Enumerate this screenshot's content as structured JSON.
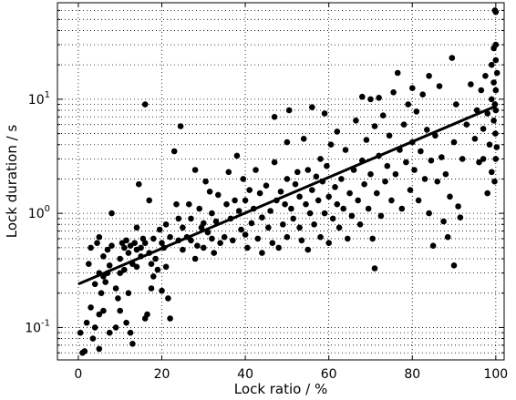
{
  "chart_data": {
    "type": "scatter",
    "xlabel": "Lock ratio / %",
    "ylabel": "Lock duration / s",
    "xlim": [
      -5,
      102
    ],
    "ylim": [
      0.052,
      70
    ],
    "yscale": "log",
    "grid": true,
    "x_ticks": [
      0,
      20,
      40,
      60,
      80,
      100
    ],
    "x_tick_labels": [
      "0",
      "20",
      "40",
      "60",
      "80",
      "100"
    ],
    "y_ticks": [
      0.1,
      1,
      10
    ],
    "y_tick_labels": [
      {
        "base": "10",
        "exp": "-1"
      },
      {
        "base": "10",
        "exp": "0"
      },
      {
        "base": "10",
        "exp": "1"
      }
    ],
    "colors": {
      "points": "#000000",
      "fit_line": "#000000",
      "grid": "#000000"
    },
    "fit_line": {
      "x": [
        0,
        100
      ],
      "y": [
        0.24,
        8.7
      ]
    },
    "series": [
      {
        "values": [
          [
            0.5,
            0.09
          ],
          [
            1,
            0.06
          ],
          [
            1.5,
            0.062
          ],
          [
            2,
            0.11
          ],
          [
            2.5,
            0.36
          ],
          [
            3,
            0.5
          ],
          [
            3,
            0.15
          ],
          [
            3.5,
            0.08
          ],
          [
            4,
            0.1
          ],
          [
            4,
            0.24
          ],
          [
            4.5,
            0.55
          ],
          [
            5,
            0.3
          ],
          [
            5,
            0.62
          ],
          [
            5,
            0.13
          ],
          [
            5,
            0.065
          ],
          [
            5.5,
            0.2
          ],
          [
            6,
            0.14
          ],
          [
            6,
            0.28
          ],
          [
            6,
            0.42
          ],
          [
            6.5,
            0.25
          ],
          [
            7,
            0.48
          ],
          [
            7,
            0.3
          ],
          [
            7.5,
            0.35
          ],
          [
            7.5,
            0.09
          ],
          [
            8,
            1.0
          ],
          [
            8,
            0.52
          ],
          [
            9,
            0.22
          ],
          [
            9,
            0.1
          ],
          [
            9.5,
            0.18
          ],
          [
            10,
            0.4
          ],
          [
            10,
            0.3
          ],
          [
            10,
            0.14
          ],
          [
            10.5,
            0.55
          ],
          [
            11,
            0.5
          ],
          [
            11,
            0.32
          ],
          [
            11.5,
            0.11
          ],
          [
            11.5,
            0.58
          ],
          [
            12,
            0.45
          ],
          [
            12,
            0.2
          ],
          [
            12.5,
            0.09
          ],
          [
            12.5,
            0.52
          ],
          [
            13,
            0.36
          ],
          [
            13,
            0.072
          ],
          [
            13.5,
            0.55
          ],
          [
            14,
            0.75
          ],
          [
            14,
            0.48
          ],
          [
            14,
            0.34
          ],
          [
            14.5,
            1.8
          ],
          [
            15,
            0.5
          ],
          [
            15,
            0.42
          ],
          [
            15.5,
            0.6
          ],
          [
            16,
            0.12
          ],
          [
            16,
            9.0
          ],
          [
            16,
            0.55
          ],
          [
            16.5,
            0.13
          ],
          [
            17,
            0.45
          ],
          [
            17,
            1.3
          ],
          [
            17.5,
            0.36
          ],
          [
            17.5,
            0.22
          ],
          [
            18,
            0.6
          ],
          [
            18,
            0.28
          ],
          [
            18.5,
            0.4
          ],
          [
            19,
            0.32
          ],
          [
            19.5,
            0.72
          ],
          [
            20,
            0.55
          ],
          [
            20,
            0.21
          ],
          [
            20.5,
            0.5
          ],
          [
            21,
            0.8
          ],
          [
            21,
            0.34
          ],
          [
            21.5,
            0.18
          ],
          [
            22,
            0.62
          ],
          [
            22,
            0.12
          ],
          [
            23,
            3.5
          ],
          [
            23.5,
            1.2
          ],
          [
            24,
            0.9
          ],
          [
            24,
            0.58
          ],
          [
            24.5,
            5.8
          ],
          [
            25,
            0.75
          ],
          [
            25,
            0.48
          ],
          [
            26,
            0.62
          ],
          [
            26.5,
            1.2
          ],
          [
            27,
            0.9
          ],
          [
            27,
            0.58
          ],
          [
            28,
            2.4
          ],
          [
            28,
            0.4
          ],
          [
            28.5,
            0.52
          ],
          [
            29,
            1.1
          ],
          [
            29.5,
            0.75
          ],
          [
            30,
            0.82
          ],
          [
            30,
            0.5
          ],
          [
            30.5,
            1.9
          ],
          [
            31,
            0.68
          ],
          [
            31.5,
            1.55
          ],
          [
            32,
            1.0
          ],
          [
            32,
            0.6
          ],
          [
            32.5,
            0.45
          ],
          [
            33,
            0.85
          ],
          [
            33.5,
            1.45
          ],
          [
            34,
            0.55
          ],
          [
            35,
            0.62
          ],
          [
            35.5,
            1.2
          ],
          [
            36,
            2.3
          ],
          [
            36.5,
            0.9
          ],
          [
            37,
            0.58
          ],
          [
            37.5,
            1.3
          ],
          [
            38,
            3.2
          ],
          [
            38.5,
            1.05
          ],
          [
            39,
            0.72
          ],
          [
            39.5,
            2.0
          ],
          [
            40,
            1.3
          ],
          [
            40,
            0.65
          ],
          [
            40.5,
            0.5
          ],
          [
            41,
            1.6
          ],
          [
            41.5,
            0.82
          ],
          [
            42,
            1.1
          ],
          [
            42.5,
            2.4
          ],
          [
            43,
            0.6
          ],
          [
            43.5,
            1.5
          ],
          [
            44,
            0.92
          ],
          [
            44,
            0.45
          ],
          [
            45,
            1.75
          ],
          [
            45.5,
            0.75
          ],
          [
            46,
            1.05
          ],
          [
            46.5,
            0.55
          ],
          [
            47,
            7.0
          ],
          [
            47,
            2.8
          ],
          [
            47.5,
            1.3
          ],
          [
            48,
            0.5
          ],
          [
            48.5,
            1.55
          ],
          [
            49,
            0.8
          ],
          [
            49.5,
            1.2
          ],
          [
            50,
            4.2
          ],
          [
            50,
            2.0
          ],
          [
            50,
            0.62
          ],
          [
            50.5,
            8.0
          ],
          [
            51,
            1.1
          ],
          [
            51.5,
            0.9
          ],
          [
            52,
            1.8
          ],
          [
            52.5,
            2.3
          ],
          [
            53,
            0.75
          ],
          [
            53,
            1.4
          ],
          [
            53.5,
            0.58
          ],
          [
            54,
            4.5
          ],
          [
            54.5,
            1.2
          ],
          [
            55,
            2.4
          ],
          [
            55,
            0.48
          ],
          [
            55.5,
            1.0
          ],
          [
            56,
            8.5
          ],
          [
            56,
            1.6
          ],
          [
            56.5,
            0.8
          ],
          [
            57,
            2.1
          ],
          [
            57.5,
            1.3
          ],
          [
            58,
            0.62
          ],
          [
            58,
            3.0
          ],
          [
            58.5,
            1.9
          ],
          [
            59,
            7.5
          ],
          [
            59,
            1.0
          ],
          [
            59.5,
            2.6
          ],
          [
            60,
            1.4
          ],
          [
            60,
            0.55
          ],
          [
            60.5,
            4.0
          ],
          [
            61,
            0.9
          ],
          [
            61.5,
            1.7
          ],
          [
            62,
            1.2
          ],
          [
            62,
            5.2
          ],
          [
            62.5,
            0.75
          ],
          [
            63,
            2.0
          ],
          [
            63.5,
            1.1
          ],
          [
            64,
            3.6
          ],
          [
            64.5,
            0.6
          ],
          [
            65,
            1.5
          ],
          [
            65.5,
            0.95
          ],
          [
            66,
            2.4
          ],
          [
            66.5,
            6.5
          ],
          [
            67,
            1.3
          ],
          [
            67.5,
            0.8
          ],
          [
            68,
            10.5
          ],
          [
            68,
            2.9
          ],
          [
            68.5,
            1.8
          ],
          [
            69,
            4.4
          ],
          [
            69.5,
            1.1
          ],
          [
            70,
            10.0
          ],
          [
            70,
            2.2
          ],
          [
            70.5,
            0.6
          ],
          [
            71,
            5.8
          ],
          [
            71,
            0.33
          ],
          [
            71.5,
            1.5
          ],
          [
            72,
            3.2
          ],
          [
            72,
            10.3
          ],
          [
            72.5,
            0.95
          ],
          [
            73,
            7.2
          ],
          [
            73.5,
            1.9
          ],
          [
            74,
            2.6
          ],
          [
            74.5,
            4.8
          ],
          [
            75,
            1.3
          ],
          [
            75.5,
            11.5
          ],
          [
            76,
            2.2
          ],
          [
            76.5,
            17.0
          ],
          [
            77,
            3.6
          ],
          [
            77.5,
            1.1
          ],
          [
            78,
            6.0
          ],
          [
            78.5,
            2.8
          ],
          [
            79,
            9.0
          ],
          [
            79.5,
            1.6
          ],
          [
            80,
            4.2
          ],
          [
            80,
            12.5
          ],
          [
            80.5,
            2.4
          ],
          [
            81,
            7.8
          ],
          [
            81.5,
            1.3
          ],
          [
            82,
            3.5
          ],
          [
            82.5,
            11.0
          ],
          [
            83,
            2.0
          ],
          [
            83.5,
            5.4
          ],
          [
            84,
            16.0
          ],
          [
            84,
            1.0
          ],
          [
            84.5,
            2.9
          ],
          [
            85,
            0.52
          ],
          [
            85.5,
            4.8
          ],
          [
            86,
            1.9
          ],
          [
            86.5,
            13.0
          ],
          [
            87,
            3.1
          ],
          [
            87.5,
            0.85
          ],
          [
            88,
            2.2
          ],
          [
            88.5,
            0.62
          ],
          [
            89,
            1.4
          ],
          [
            89.5,
            23.0
          ],
          [
            90,
            0.35
          ],
          [
            90,
            4.2
          ],
          [
            90.5,
            9.0
          ],
          [
            91,
            1.15
          ],
          [
            91.5,
            0.92
          ],
          [
            92,
            3.0
          ],
          [
            93,
            6.0
          ],
          [
            94,
            13.5
          ],
          [
            95,
            4.5
          ],
          [
            95.5,
            8.0
          ],
          [
            96,
            2.8
          ],
          [
            96.5,
            12.0
          ],
          [
            97,
            5.5
          ],
          [
            97,
            3.0
          ],
          [
            97.5,
            16.0
          ],
          [
            98,
            1.5
          ],
          [
            98,
            7.5
          ],
          [
            98.5,
            4.0
          ],
          [
            99,
            2.3
          ],
          [
            99,
            10.0
          ],
          [
            99,
            20.0
          ],
          [
            99.5,
            6.5
          ],
          [
            99.5,
            14.0
          ],
          [
            99.5,
            28.0
          ],
          [
            99.7,
            1.9
          ],
          [
            99.8,
            9.0
          ],
          [
            99.8,
            60.0
          ],
          [
            99.9,
            5.0
          ],
          [
            100,
            3.0
          ],
          [
            100,
            12.0
          ],
          [
            100,
            22.0
          ],
          [
            100,
            30.0
          ],
          [
            100,
            8.0
          ],
          [
            100,
            58.0
          ],
          [
            100.2,
            3.8
          ],
          [
            100.3,
            17.0
          ]
        ]
      }
    ]
  }
}
